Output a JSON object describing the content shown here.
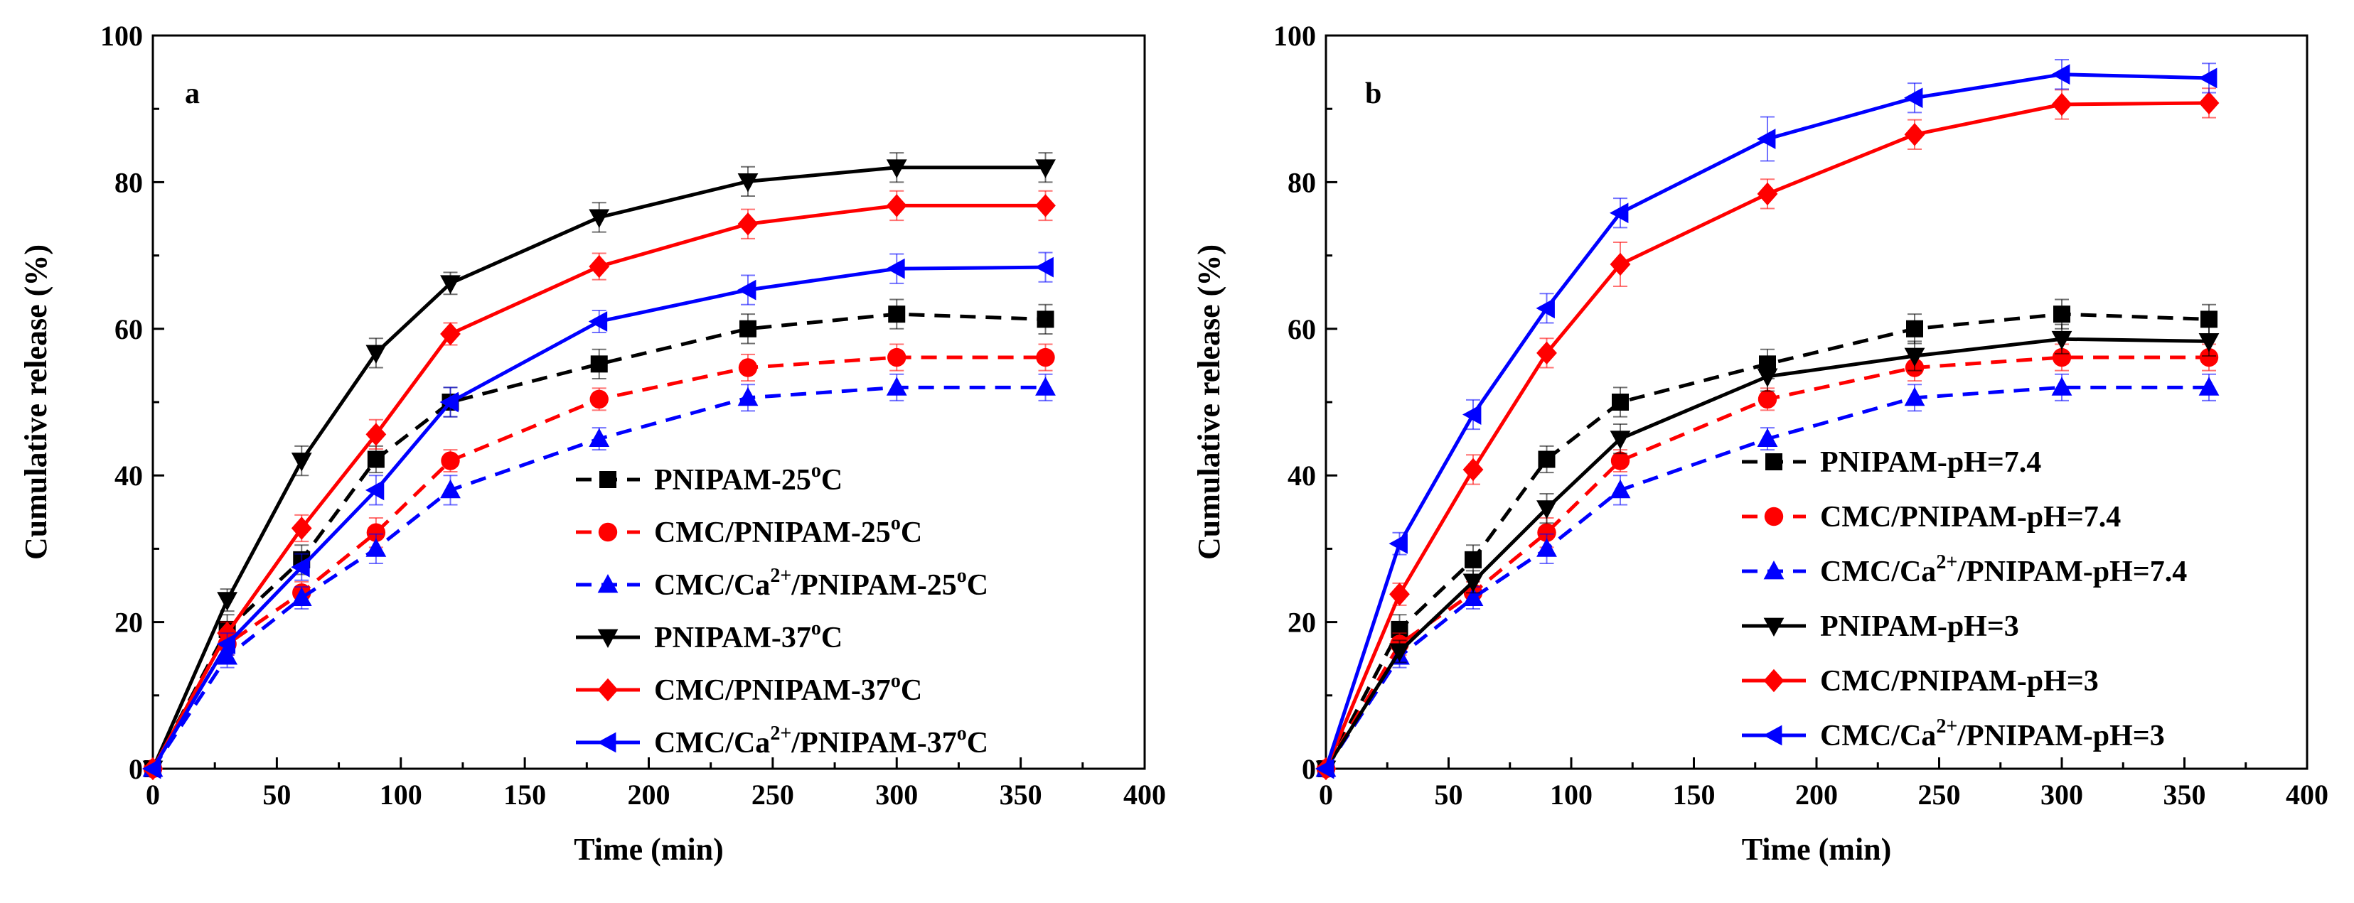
{
  "chart_data": [
    {
      "type": "line",
      "panel_label": "a",
      "xlabel": "Time (min)",
      "ylabel": "Cumulative release (%)",
      "xlim": [
        0,
        400
      ],
      "ylim": [
        0,
        100
      ],
      "xticks": [
        "0",
        "50",
        "100",
        "150",
        "200",
        "250",
        "300",
        "350",
        "400"
      ],
      "yticks": [
        "0",
        "20",
        "40",
        "60",
        "80",
        "100"
      ],
      "x": [
        0,
        30,
        60,
        90,
        120,
        180,
        240,
        300,
        360
      ],
      "series": [
        {
          "name": "PNIPAM-25oC",
          "legend_base": "PNIPAM-25",
          "legend_sup": "o",
          "legend_tail": "C",
          "color": "#000000",
          "dash": true,
          "marker": "square",
          "values": [
            0,
            19,
            28.5,
            42.2,
            50,
            55.2,
            60,
            62,
            61.3
          ],
          "errors": [
            0,
            2,
            2,
            1.8,
            2,
            2,
            2,
            2,
            2
          ]
        },
        {
          "name": "CMC/PNIPAM-25oC",
          "legend_base": "CMC/PNIPAM-25",
          "legend_sup": "o",
          "legend_tail": "C",
          "color": "#ff0000",
          "dash": true,
          "marker": "circle",
          "values": [
            0,
            17,
            24,
            32.2,
            42,
            50.4,
            54.7,
            56.1,
            56.1
          ],
          "errors": [
            0,
            1.5,
            1.5,
            2,
            1.5,
            1.5,
            1.8,
            1.8,
            1.8
          ]
        },
        {
          "name": "CMC/Ca2+/PNIPAM-25oC",
          "legend_base": "CMC/Ca",
          "legend_sup": "2+",
          "legend_tail": "/PNIPAM-25",
          "legend_sup2": "o",
          "legend_tail2": "C",
          "color": "#0000ff",
          "dash": true,
          "marker": "triangle-up",
          "values": [
            0,
            15.3,
            23.3,
            30,
            38,
            45,
            50.6,
            52,
            52
          ],
          "errors": [
            0,
            1.5,
            1.5,
            2,
            2,
            1.5,
            1.8,
            1.8,
            1.8
          ]
        },
        {
          "name": "PNIPAM-37oC",
          "legend_base": "PNIPAM-37",
          "legend_sup": "o",
          "legend_tail": "C",
          "color": "#000000",
          "dash": false,
          "marker": "triangle-down",
          "values": [
            0,
            23,
            42,
            56.7,
            66.2,
            75.2,
            80.1,
            82,
            82
          ],
          "errors": [
            0,
            1.5,
            2,
            2,
            1.5,
            2,
            2,
            2,
            2
          ]
        },
        {
          "name": "CMC/PNIPAM-37oC",
          "legend_base": "CMC/PNIPAM-37",
          "legend_sup": "o",
          "legend_tail": "C",
          "color": "#ff0000",
          "dash": false,
          "marker": "diamond",
          "values": [
            0,
            18.5,
            32.8,
            45.6,
            59.3,
            68.5,
            74.3,
            76.8,
            76.8
          ],
          "errors": [
            0,
            1.5,
            1.8,
            2,
            1.5,
            1.8,
            2,
            2,
            2
          ]
        },
        {
          "name": "CMC/Ca2+/PNIPAM-37oC",
          "legend_base": "CMC/Ca",
          "legend_sup": "2+",
          "legend_tail": "/PNIPAM-37",
          "legend_sup2": "o",
          "legend_tail2": "C",
          "color": "#0000ff",
          "dash": false,
          "marker": "triangle-left",
          "values": [
            0,
            17,
            27.5,
            38,
            50,
            61,
            65.3,
            68.2,
            68.4
          ],
          "errors": [
            0,
            1.5,
            1.8,
            2,
            2,
            1.5,
            2,
            2,
            2
          ]
        }
      ]
    },
    {
      "type": "line",
      "panel_label": "b",
      "xlabel": "Time (min)",
      "ylabel": "Cumulative release (%)",
      "xlim": [
        0,
        400
      ],
      "ylim": [
        0,
        100
      ],
      "xticks": [
        "0",
        "50",
        "100",
        "150",
        "200",
        "250",
        "300",
        "350",
        "400"
      ],
      "yticks": [
        "0",
        "20",
        "40",
        "60",
        "80",
        "100"
      ],
      "x": [
        0,
        30,
        60,
        90,
        120,
        180,
        240,
        300,
        360
      ],
      "series": [
        {
          "name": "PNIPAM-pH=7.4",
          "legend_base": "PNIPAM-pH=7.4",
          "color": "#000000",
          "dash": true,
          "marker": "square",
          "values": [
            0,
            19,
            28.5,
            42.2,
            50,
            55.2,
            60,
            62,
            61.3
          ],
          "errors": [
            0,
            2,
            2,
            1.8,
            2,
            2,
            2,
            2,
            2
          ]
        },
        {
          "name": "CMC/PNIPAM-pH=7.4",
          "legend_base": "CMC/PNIPAM-pH=7.4",
          "color": "#ff0000",
          "dash": true,
          "marker": "circle",
          "values": [
            0,
            17,
            24,
            32.2,
            42,
            50.4,
            54.7,
            56.1,
            56.1
          ],
          "errors": [
            0,
            1.5,
            1.5,
            2,
            1.5,
            1.5,
            1.8,
            1.8,
            1.8
          ]
        },
        {
          "name": "CMC/Ca2+/PNIPAM-pH=7.4",
          "legend_base": "CMC/Ca",
          "legend_sup": "2+",
          "legend_tail": "/PNIPAM-pH=7.4",
          "color": "#0000ff",
          "dash": true,
          "marker": "triangle-up",
          "values": [
            0,
            15.3,
            23.3,
            30,
            38,
            45,
            50.6,
            52,
            52
          ],
          "errors": [
            0,
            1.5,
            1.5,
            2,
            2,
            1.5,
            1.8,
            1.8,
            1.8
          ]
        },
        {
          "name": "PNIPAM-pH=3",
          "legend_base": "PNIPAM-pH=3",
          "color": "#000000",
          "dash": false,
          "marker": "triangle-down",
          "values": [
            0,
            16,
            25.5,
            35.5,
            45,
            53.5,
            56.3,
            58.6,
            58.3
          ],
          "errors": [
            0,
            1.5,
            1.5,
            2,
            2,
            2,
            2,
            2,
            2
          ]
        },
        {
          "name": "CMC/PNIPAM-pH=3",
          "legend_base": "CMC/PNIPAM-pH=3",
          "color": "#ff0000",
          "dash": false,
          "marker": "diamond",
          "values": [
            0,
            23.8,
            40.8,
            56.7,
            68.8,
            78.4,
            86.5,
            90.6,
            90.8
          ],
          "errors": [
            0,
            1.5,
            2,
            2,
            3,
            2,
            2,
            2,
            2
          ]
        },
        {
          "name": "CMC/Ca2+/PNIPAM-pH=3",
          "legend_base": "CMC/Ca",
          "legend_sup": "2+",
          "legend_tail": "/PNIPAM-pH=3",
          "color": "#0000ff",
          "dash": false,
          "marker": "triangle-left",
          "values": [
            0,
            30.7,
            48.3,
            62.8,
            75.8,
            85.9,
            91.5,
            94.7,
            94.2
          ],
          "errors": [
            0,
            1.5,
            2,
            2,
            2,
            3,
            2,
            2,
            2
          ]
        }
      ]
    }
  ]
}
